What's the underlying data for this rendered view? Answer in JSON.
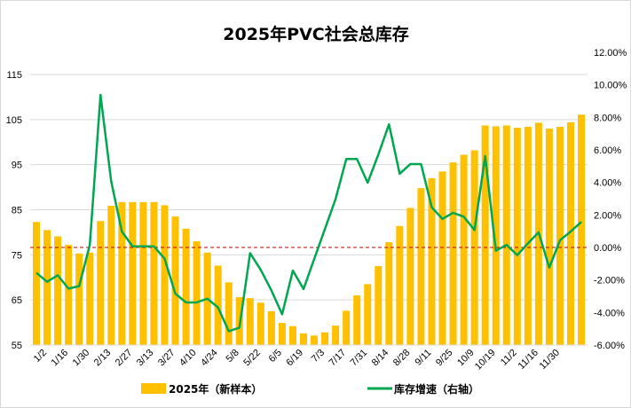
{
  "chart_data": {
    "type": "bar+line",
    "title": "2025年PVC社会总库存",
    "categories": [
      "1/2",
      "",
      "1/16",
      "",
      "1/30",
      "",
      "2/13",
      "",
      "2/27",
      "",
      "3/13",
      "",
      "3/27",
      "",
      "4/10",
      "",
      "4/24",
      "",
      "5/8",
      "",
      "5/22",
      "",
      "6/5",
      "",
      "6/19",
      "",
      "7/3",
      "",
      "7/17",
      "",
      "7/31",
      "",
      "8/14",
      "",
      "8/28",
      "",
      "9/11",
      "",
      "9/25",
      "",
      "10/9",
      "",
      "10/19",
      "",
      "11/2",
      "",
      "11/16",
      "",
      "11/30",
      "",
      "",
      ""
    ],
    "left_axis": {
      "ylim": [
        55,
        115
      ],
      "ticks": [
        "55",
        "65",
        "75",
        "85",
        "95",
        "105",
        "115"
      ]
    },
    "right_axis": {
      "ylim": [
        -6,
        12
      ],
      "ticks": [
        "-6.00%",
        "-4.00%",
        "-2.00%",
        "0.00%",
        "2.00%",
        "4.00%",
        "6.00%",
        "8.00%",
        "10.00%",
        "12.00%"
      ]
    },
    "series": [
      {
        "name": "2025年（新样本）",
        "type": "bar",
        "axis": "left",
        "color": "#FFC000",
        "values": [
          82.3,
          80.5,
          79.1,
          77.2,
          75.3,
          75.5,
          82.5,
          85.9,
          86.7,
          86.7,
          86.7,
          86.7,
          86.0,
          83.5,
          80.8,
          78.0,
          75.5,
          72.6,
          68.9,
          65.6,
          65.4,
          64.4,
          62.5,
          59.9,
          59.2,
          57.6,
          57.1,
          57.8,
          59.3,
          62.6,
          66.0,
          68.5,
          72.5,
          77.8,
          81.4,
          85.4,
          89.8,
          92.0,
          93.5,
          95.5,
          97.2,
          98.2,
          103.7,
          103.5,
          103.7,
          103.2,
          103.4,
          104.3,
          103.0,
          103.4,
          104.4,
          106.1
        ]
      },
      {
        "name": "库存增速（右轴）",
        "type": "line",
        "axis": "right",
        "color": "#00A650",
        "values": [
          -1.56,
          -2.11,
          -1.71,
          -2.53,
          -2.38,
          0.16,
          9.38,
          4.07,
          0.98,
          0.07,
          0.07,
          0.07,
          -0.69,
          -2.84,
          -3.38,
          -3.38,
          -3.15,
          -3.69,
          -5.15,
          -4.93,
          -0.35,
          -1.38,
          -2.65,
          -4.11,
          -1.42,
          -2.56,
          -0.71,
          1.13,
          2.98,
          5.44,
          5.44,
          3.98,
          5.71,
          7.57,
          4.53,
          5.13,
          5.13,
          2.47,
          1.76,
          2.13,
          1.89,
          1.07,
          5.62,
          -0.2,
          0.16,
          -0.47,
          0.25,
          0.93,
          -1.24,
          0.44,
          0.98,
          1.57
        ]
      }
    ],
    "reference_line": {
      "axis": "right",
      "value": 0,
      "color": "#C00000",
      "style": "dashed"
    },
    "grid": true,
    "legend": "bottom"
  }
}
